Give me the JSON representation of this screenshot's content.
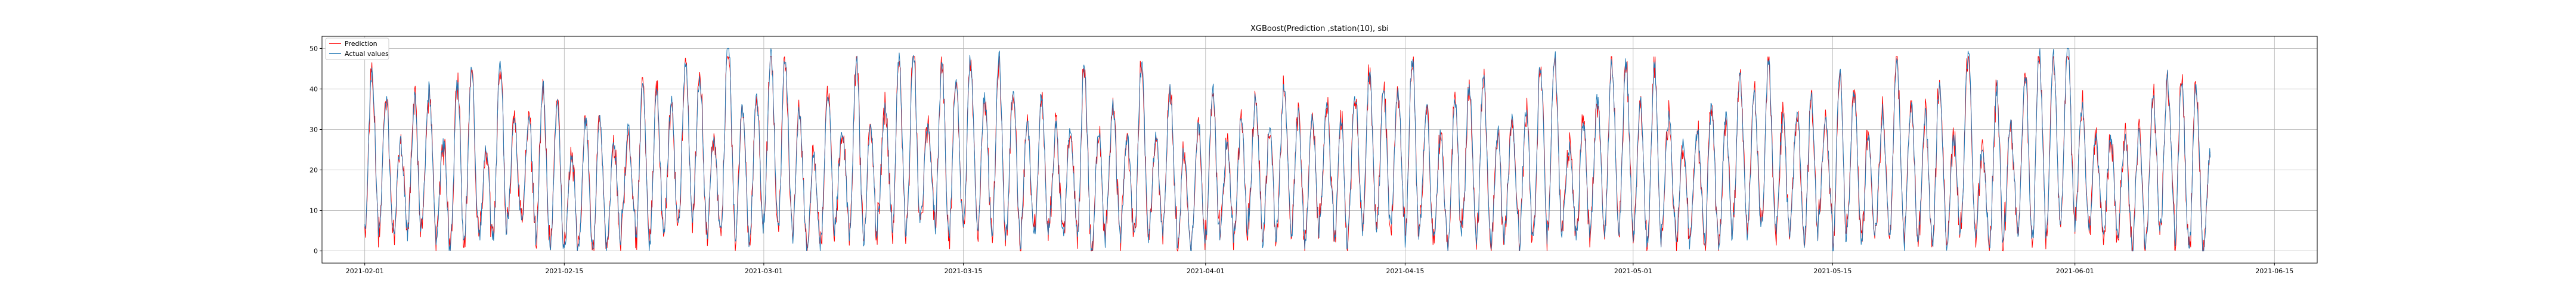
{
  "chart_data": {
    "type": "line",
    "title": "XGBoost(Prediction ,station(10), sbi",
    "xlabel": "",
    "ylabel": "",
    "x_range": [
      "2021-01-29",
      "2021-06-18"
    ],
    "xticks": [
      "2021-02-01",
      "2021-02-15",
      "2021-03-01",
      "2021-03-15",
      "2021-04-01",
      "2021-04-15",
      "2021-05-01",
      "2021-05-15",
      "2021-06-01",
      "2021-06-15"
    ],
    "ylim": [
      -3,
      53
    ],
    "yticks": [
      0,
      10,
      20,
      30,
      40,
      50
    ],
    "grid": true,
    "legend_position": "top-left",
    "data_range": [
      "2021-02-01",
      "2021-06-10"
    ],
    "sampling": "hourly",
    "series": [
      {
        "name": "Prediction",
        "color": "#ff0000",
        "description": "hourly predicted values oscillating daily between about 0 and 45"
      },
      {
        "name": "Actual values",
        "color": "#1f77b4",
        "description": "hourly observed values oscillating daily between about 0 and 50"
      }
    ],
    "legend": [
      "Prediction",
      "Actual values"
    ]
  }
}
